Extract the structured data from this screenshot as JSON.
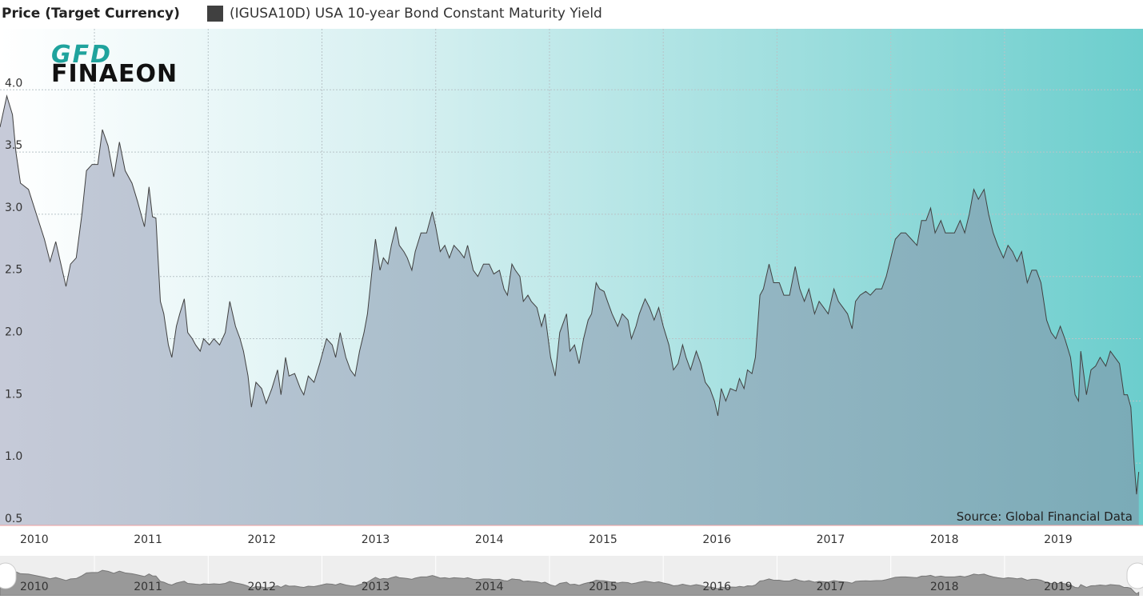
{
  "chart_data": {
    "type": "area",
    "title": "Price (Target Currency)",
    "logo": [
      "GFD",
      "FINAEON"
    ],
    "annotation": "Source: Global Financial Data",
    "series": [
      {
        "name": "(IGUSA10D) USA 10-year Bond Constant Maturity Yield",
        "color": "#404040",
        "values": [
          3.7,
          3.95,
          3.8,
          3.5,
          3.25,
          3.2,
          3.0,
          2.8,
          2.62,
          2.78,
          2.62,
          2.42,
          2.6,
          2.65,
          3.0,
          3.35,
          3.4,
          3.4,
          3.68,
          3.55,
          3.3,
          3.58,
          3.35,
          3.25,
          3.1,
          2.9,
          3.22,
          2.98,
          2.97,
          2.3,
          2.2,
          1.95,
          1.85,
          2.1,
          2.2,
          2.32,
          2.05,
          2.0,
          1.95,
          1.9,
          2.0,
          1.95,
          2.0,
          1.95,
          2.05,
          2.3,
          2.1,
          2.0,
          1.9,
          1.7,
          1.45,
          1.65,
          1.6,
          1.48,
          1.6,
          1.75,
          1.55,
          1.85,
          1.7,
          1.72,
          1.6,
          1.55,
          1.7,
          1.65,
          1.8,
          2.0,
          1.95,
          1.85,
          2.05,
          1.85,
          1.75,
          1.7,
          1.9,
          2.05,
          2.2,
          2.55,
          2.8,
          2.55,
          2.65,
          2.6,
          2.75,
          2.9,
          2.75,
          2.7,
          2.65,
          2.55,
          2.7,
          2.85,
          2.85,
          3.02,
          2.9,
          2.7,
          2.75,
          2.65,
          2.75,
          2.7,
          2.65,
          2.75,
          2.55,
          2.5,
          2.6,
          2.6,
          2.52,
          2.55,
          2.4,
          2.35,
          2.6,
          2.55,
          2.5,
          2.3,
          2.35,
          2.3,
          2.25,
          2.1,
          2.2,
          1.85,
          1.7,
          2.05,
          2.2,
          1.9,
          1.95,
          1.8,
          2.0,
          2.15,
          2.2,
          2.45,
          2.4,
          2.38,
          2.3,
          2.2,
          2.1,
          2.2,
          2.15,
          2.0,
          2.1,
          2.2,
          2.32,
          2.25,
          2.15,
          2.25,
          2.1,
          1.95,
          1.75,
          1.8,
          1.95,
          1.85,
          1.75,
          1.9,
          1.8,
          1.65,
          1.6,
          1.5,
          1.38,
          1.6,
          1.5,
          1.6,
          1.58,
          1.68,
          1.6,
          1.75,
          1.72,
          1.85,
          2.35,
          2.4,
          2.6,
          2.45,
          2.45,
          2.35,
          2.35,
          2.58,
          2.4,
          2.3,
          2.4,
          2.2,
          2.3,
          2.25,
          2.2,
          2.4,
          2.3,
          2.25,
          2.2,
          2.08,
          2.3,
          2.35,
          2.38,
          2.35,
          2.4,
          2.4,
          2.5,
          2.65,
          2.8,
          2.85,
          2.85,
          2.8,
          2.75,
          2.95,
          2.95,
          3.05,
          2.85,
          2.95,
          2.85,
          2.85,
          2.85,
          2.95,
          2.85,
          3.0,
          3.2,
          3.12,
          3.2,
          3.0,
          2.85,
          2.75,
          2.65,
          2.75,
          2.7,
          2.62,
          2.7,
          2.45,
          2.55,
          2.55,
          2.45,
          2.15,
          2.05,
          2.0,
          2.1,
          2.0,
          1.85,
          1.55,
          1.5,
          1.9,
          1.55,
          1.75,
          1.78,
          1.85,
          1.78,
          1.9,
          1.85,
          1.8,
          1.55,
          1.55,
          1.45,
          1.0,
          0.75,
          0.93
        ]
      }
    ],
    "x": [
      2010.17,
      2010.23,
      2010.28,
      2010.31,
      2010.35,
      2010.42,
      2010.49,
      2010.56,
      2010.61,
      2010.66,
      2010.7,
      2010.75,
      2010.79,
      2010.84,
      2010.89,
      2010.93,
      2010.98,
      2011.03,
      2011.07,
      2011.12,
      2011.17,
      2011.22,
      2011.27,
      2011.33,
      2011.38,
      2011.44,
      2011.48,
      2011.51,
      2011.54,
      2011.58,
      2011.61,
      2011.65,
      2011.68,
      2011.72,
      2011.75,
      2011.79,
      2011.82,
      2011.86,
      2011.89,
      2011.93,
      2011.96,
      2012.01,
      2012.05,
      2012.1,
      2012.15,
      2012.19,
      2012.24,
      2012.28,
      2012.31,
      2012.35,
      2012.38,
      2012.42,
      2012.47,
      2012.51,
      2012.56,
      2012.61,
      2012.64,
      2012.68,
      2012.71,
      2012.76,
      2012.81,
      2012.84,
      2012.88,
      2012.93,
      2012.98,
      2013.04,
      2013.09,
      2013.12,
      2013.16,
      2013.21,
      2013.25,
      2013.29,
      2013.33,
      2013.37,
      2013.4,
      2013.44,
      2013.47,
      2013.51,
      2013.54,
      2013.58,
      2013.61,
      2013.65,
      2013.68,
      2013.72,
      2013.75,
      2013.79,
      2013.82,
      2013.87,
      2013.92,
      2013.97,
      2014.0,
      2014.04,
      2014.08,
      2014.12,
      2014.16,
      2014.21,
      2014.25,
      2014.28,
      2014.33,
      2014.37,
      2014.42,
      2014.47,
      2014.51,
      2014.56,
      2014.6,
      2014.63,
      2014.67,
      2014.7,
      2014.74,
      2014.77,
      2014.81,
      2014.84,
      2014.89,
      2014.93,
      2014.96,
      2015.01,
      2015.05,
      2015.09,
      2015.15,
      2015.18,
      2015.22,
      2015.26,
      2015.3,
      2015.34,
      2015.37,
      2015.41,
      2015.44,
      2015.48,
      2015.51,
      2015.55,
      2015.6,
      2015.64,
      2015.69,
      2015.72,
      2015.76,
      2015.79,
      2015.84,
      2015.88,
      2015.92,
      2015.96,
      2016.0,
      2016.05,
      2016.09,
      2016.13,
      2016.17,
      2016.2,
      2016.24,
      2016.29,
      2016.33,
      2016.37,
      2016.41,
      2016.45,
      2016.48,
      2016.51,
      2016.55,
      2016.59,
      2016.64,
      2016.67,
      2016.71,
      2016.74,
      2016.78,
      2016.81,
      2016.85,
      2016.88,
      2016.93,
      2016.97,
      2017.02,
      2017.06,
      2017.11,
      2017.16,
      2017.2,
      2017.24,
      2017.28,
      2017.33,
      2017.37,
      2017.41,
      2017.45,
      2017.5,
      2017.54,
      2017.58,
      2017.62,
      2017.66,
      2017.69,
      2017.73,
      2017.78,
      2017.82,
      2017.87,
      2017.92,
      2017.96,
      2018.0,
      2018.04,
      2018.09,
      2018.13,
      2018.18,
      2018.23,
      2018.27,
      2018.31,
      2018.35,
      2018.39,
      2018.44,
      2018.48,
      2018.52,
      2018.56,
      2018.61,
      2018.65,
      2018.69,
      2018.73,
      2018.77,
      2018.82,
      2018.86,
      2018.9,
      2018.94,
      2018.99,
      2019.03,
      2019.07,
      2019.11,
      2019.15,
      2019.2,
      2019.24,
      2019.28,
      2019.32,
      2019.37,
      2019.41,
      2019.45,
      2019.49,
      2019.53,
      2019.58,
      2019.62,
      2019.65,
      2019.67,
      2019.72,
      2019.76,
      2019.8,
      2019.84,
      2019.89,
      2019.93,
      2019.97,
      2020.01,
      2020.05,
      2020.08,
      2020.11,
      2020.14,
      2020.16,
      2020.18
    ],
    "xlim": [
      2010.17,
      2020.21
    ],
    "xticks": [
      2010,
      2011,
      2012,
      2013,
      2014,
      2015,
      2016,
      2017,
      2018,
      2019
    ],
    "ylim": [
      0.5,
      4.49
    ],
    "yticks": [
      0.5,
      {
        "value": 1,
        "label": "1.0"
      },
      1.5,
      {
        "value": 2,
        "label": "2.0"
      },
      2.5,
      {
        "value": 3,
        "label": "3.0"
      },
      3.5,
      {
        "value": 4,
        "label": "4.0"
      }
    ],
    "grid": true
  }
}
